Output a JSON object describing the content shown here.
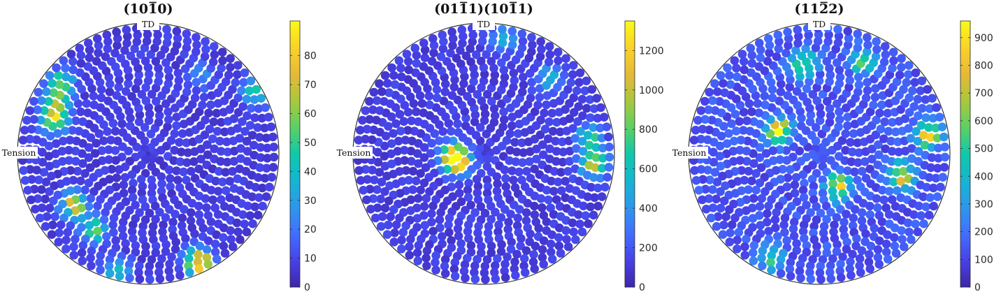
{
  "chart_data": [
    {
      "type": "scatter",
      "subtype": "pole-figure",
      "title": "(10-10)",
      "title_main": "(10",
      "title_bar": "1",
      "title_end": "0)",
      "direction_labels": {
        "top": "TD",
        "left": "Tension"
      },
      "colorbar": {
        "min": 0,
        "max": 92,
        "ticks": [
          0,
          10,
          20,
          30,
          40,
          50,
          60,
          70,
          80
        ],
        "colormap": "parula"
      },
      "background_value": 8,
      "hotspots": [
        {
          "theta_deg": 30,
          "r": 0.97,
          "value": 35
        },
        {
          "theta_deg": 55,
          "r": 0.75,
          "value": 20
        },
        {
          "theta_deg": 150,
          "r": 0.85,
          "value": 52
        },
        {
          "theta_deg": 160,
          "r": 0.8,
          "value": 72
        },
        {
          "theta_deg": 140,
          "r": 0.9,
          "value": 40
        },
        {
          "theta_deg": 215,
          "r": 0.72,
          "value": 65
        },
        {
          "theta_deg": 235,
          "r": 0.75,
          "value": 45
        },
        {
          "theta_deg": 295,
          "r": 0.95,
          "value": 80
        },
        {
          "theta_deg": 255,
          "r": 0.97,
          "value": 35
        }
      ]
    },
    {
      "type": "scatter",
      "subtype": "pole-figure",
      "title": "(01-11)(10-11)",
      "title_parts": [
        "(01",
        "1",
        "1)(10",
        "1",
        "1)"
      ],
      "direction_labels": {
        "top": "TD",
        "left": "Tension"
      },
      "colorbar": {
        "min": 0,
        "max": 1350,
        "ticks": [
          0,
          200,
          400,
          600,
          800,
          1000,
          1200
        ],
        "colormap": "parula"
      },
      "background_value": 120,
      "hotspots": [
        {
          "theta_deg": 195,
          "r": 0.22,
          "value": 1100
        },
        {
          "theta_deg": 180,
          "r": 0.25,
          "value": 700
        },
        {
          "theta_deg": 355,
          "r": 0.88,
          "value": 900
        },
        {
          "theta_deg": 8,
          "r": 0.85,
          "value": 600
        },
        {
          "theta_deg": 80,
          "r": 0.92,
          "value": 450
        },
        {
          "theta_deg": 50,
          "r": 0.8,
          "value": 400
        }
      ]
    },
    {
      "type": "scatter",
      "subtype": "pole-figure",
      "title": "(11-22)",
      "title_main": "(11",
      "title_bar": "2",
      "title_end": "2)",
      "direction_labels": {
        "top": "TD",
        "left": "Tension"
      },
      "colorbar": {
        "min": 0,
        "max": 960,
        "ticks": [
          0,
          100,
          200,
          300,
          400,
          500,
          600,
          700,
          800,
          900
        ],
        "colormap": "parula"
      },
      "background_value": 130,
      "hotspots": [
        {
          "theta_deg": 150,
          "r": 0.38,
          "value": 780
        },
        {
          "theta_deg": 300,
          "r": 0.3,
          "value": 620
        },
        {
          "theta_deg": 10,
          "r": 0.88,
          "value": 700
        },
        {
          "theta_deg": 345,
          "r": 0.68,
          "value": 700
        },
        {
          "theta_deg": 100,
          "r": 0.72,
          "value": 500
        },
        {
          "theta_deg": 65,
          "r": 0.82,
          "value": 450
        },
        {
          "theta_deg": 245,
          "r": 0.92,
          "value": 350
        }
      ]
    }
  ]
}
